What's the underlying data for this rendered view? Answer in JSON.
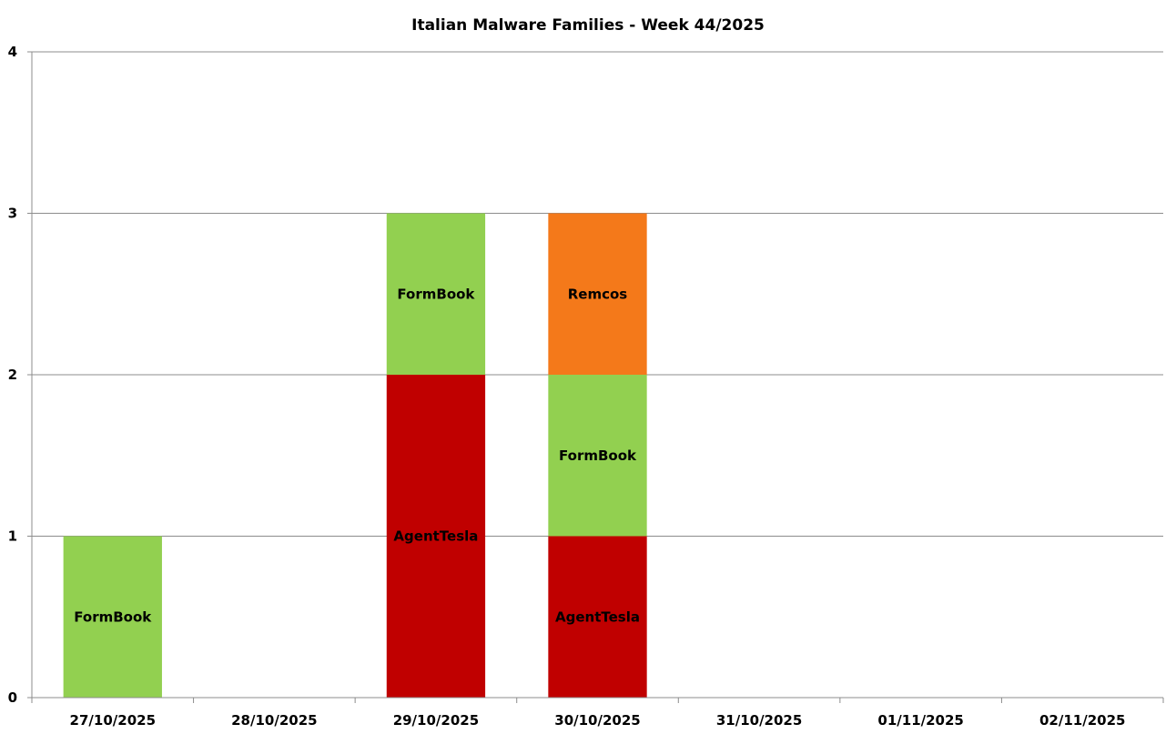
{
  "chart_data": {
    "type": "bar",
    "stacked": true,
    "title": "Italian Malware Families - Week 44/2025",
    "categories": [
      "27/10/2025",
      "28/10/2025",
      "29/10/2025",
      "30/10/2025",
      "31/10/2025",
      "01/11/2025",
      "02/11/2025"
    ],
    "ylim": [
      0,
      4
    ],
    "yticks": [
      0,
      1,
      2,
      3,
      4
    ],
    "grid": true,
    "legend": "none",
    "series": [
      {
        "name": "AgentTesla",
        "color": "#c00000",
        "values": [
          0,
          0,
          2,
          1,
          0,
          0,
          0
        ]
      },
      {
        "name": "FormBook",
        "color": "#92d050",
        "values": [
          1,
          0,
          1,
          1,
          0,
          0,
          0
        ]
      },
      {
        "name": "Remcos",
        "color": "#f4791a",
        "values": [
          0,
          0,
          0,
          1,
          0,
          0,
          0
        ]
      }
    ]
  }
}
